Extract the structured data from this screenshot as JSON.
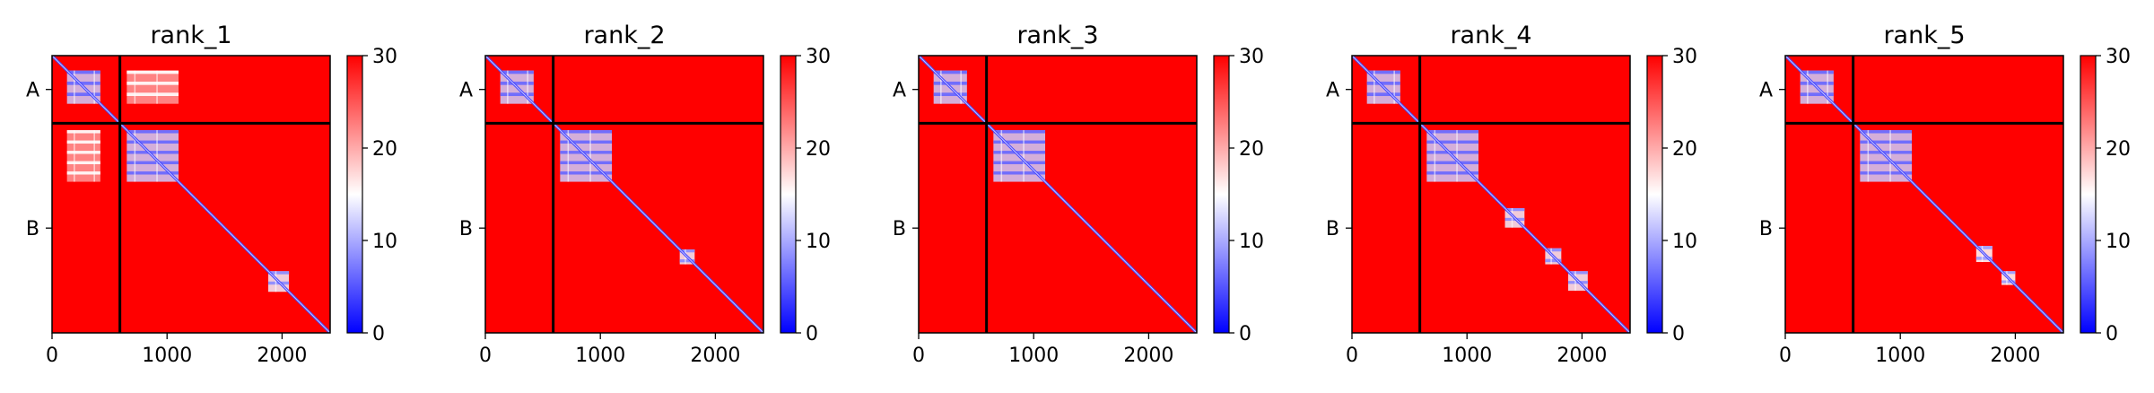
{
  "figure": {
    "panels": [
      {
        "title": "rank_1"
      },
      {
        "title": "rank_2"
      },
      {
        "title": "rank_3"
      },
      {
        "title": "rank_4"
      },
      {
        "title": "rank_5"
      }
    ]
  },
  "chart_data": [
    {
      "type": "heatmap",
      "title": "rank_1",
      "xlim": [
        0,
        2418
      ],
      "ylim": [
        2418,
        0
      ],
      "xticks": [
        0,
        1000,
        2000
      ],
      "yticklabels": [
        "A",
        "B"
      ],
      "chain_boundary": 590,
      "colorbar": {
        "ticks": [
          0,
          10,
          20,
          30
        ],
        "range": [
          0,
          30
        ],
        "colormap": [
          "#0000ff",
          "#ffffff",
          "#ff0000"
        ]
      },
      "blobs": [
        {
          "x": [
            130,
            420
          ],
          "y": [
            130,
            420
          ],
          "value": 6
        },
        {
          "x": [
            650,
            1100
          ],
          "y": [
            130,
            420
          ],
          "value": 15
        },
        {
          "x": [
            130,
            420
          ],
          "y": [
            650,
            1100
          ],
          "value": 15
        },
        {
          "x": [
            650,
            1100
          ],
          "y": [
            650,
            1100
          ],
          "value": 6
        },
        {
          "x": [
            1880,
            2060
          ],
          "y": [
            1880,
            2060
          ],
          "value": 8
        }
      ]
    },
    {
      "type": "heatmap",
      "title": "rank_2",
      "xlim": [
        0,
        2418
      ],
      "ylim": [
        2418,
        0
      ],
      "xticks": [
        0,
        1000,
        2000
      ],
      "yticklabels": [
        "A",
        "B"
      ],
      "chain_boundary": 590,
      "colorbar": {
        "ticks": [
          0,
          10,
          20,
          30
        ],
        "range": [
          0,
          30
        ],
        "colormap": [
          "#0000ff",
          "#ffffff",
          "#ff0000"
        ]
      },
      "blobs": [
        {
          "x": [
            130,
            420
          ],
          "y": [
            130,
            420
          ],
          "value": 6
        },
        {
          "x": [
            650,
            1100
          ],
          "y": [
            650,
            1100
          ],
          "value": 6
        },
        {
          "x": [
            1690,
            1820
          ],
          "y": [
            1690,
            1820
          ],
          "value": 8
        }
      ]
    },
    {
      "type": "heatmap",
      "title": "rank_3",
      "xlim": [
        0,
        2418
      ],
      "ylim": [
        2418,
        0
      ],
      "xticks": [
        0,
        1000,
        2000
      ],
      "yticklabels": [
        "A",
        "B"
      ],
      "chain_boundary": 590,
      "colorbar": {
        "ticks": [
          0,
          10,
          20,
          30
        ],
        "range": [
          0,
          30
        ],
        "colormap": [
          "#0000ff",
          "#ffffff",
          "#ff0000"
        ]
      },
      "blobs": [
        {
          "x": [
            130,
            420
          ],
          "y": [
            130,
            420
          ],
          "value": 6
        },
        {
          "x": [
            650,
            1100
          ],
          "y": [
            650,
            1100
          ],
          "value": 6
        }
      ]
    },
    {
      "type": "heatmap",
      "title": "rank_4",
      "xlim": [
        0,
        2418
      ],
      "ylim": [
        2418,
        0
      ],
      "xticks": [
        0,
        1000,
        2000
      ],
      "yticklabels": [
        "A",
        "B"
      ],
      "chain_boundary": 590,
      "colorbar": {
        "ticks": [
          0,
          10,
          20,
          30
        ],
        "range": [
          0,
          30
        ],
        "colormap": [
          "#0000ff",
          "#ffffff",
          "#ff0000"
        ]
      },
      "blobs": [
        {
          "x": [
            130,
            420
          ],
          "y": [
            130,
            420
          ],
          "value": 6
        },
        {
          "x": [
            650,
            1100
          ],
          "y": [
            650,
            1100
          ],
          "value": 6
        },
        {
          "x": [
            1330,
            1500
          ],
          "y": [
            1330,
            1500
          ],
          "value": 8
        },
        {
          "x": [
            1680,
            1820
          ],
          "y": [
            1680,
            1820
          ],
          "value": 8
        },
        {
          "x": [
            1880,
            2050
          ],
          "y": [
            1880,
            2050
          ],
          "value": 8
        }
      ]
    },
    {
      "type": "heatmap",
      "title": "rank_5",
      "xlim": [
        0,
        2418
      ],
      "ylim": [
        2418,
        0
      ],
      "xticks": [
        0,
        1000,
        2000
      ],
      "yticklabels": [
        "A",
        "B"
      ],
      "chain_boundary": 590,
      "colorbar": {
        "ticks": [
          0,
          10,
          20,
          30
        ],
        "range": [
          0,
          30
        ],
        "colormap": [
          "#0000ff",
          "#ffffff",
          "#ff0000"
        ]
      },
      "blobs": [
        {
          "x": [
            130,
            420
          ],
          "y": [
            130,
            420
          ],
          "value": 6
        },
        {
          "x": [
            650,
            1100
          ],
          "y": [
            650,
            1100
          ],
          "value": 6
        },
        {
          "x": [
            1660,
            1800
          ],
          "y": [
            1660,
            1800
          ],
          "value": 9
        },
        {
          "x": [
            1880,
            2000
          ],
          "y": [
            1880,
            2000
          ],
          "value": 9
        }
      ]
    }
  ]
}
